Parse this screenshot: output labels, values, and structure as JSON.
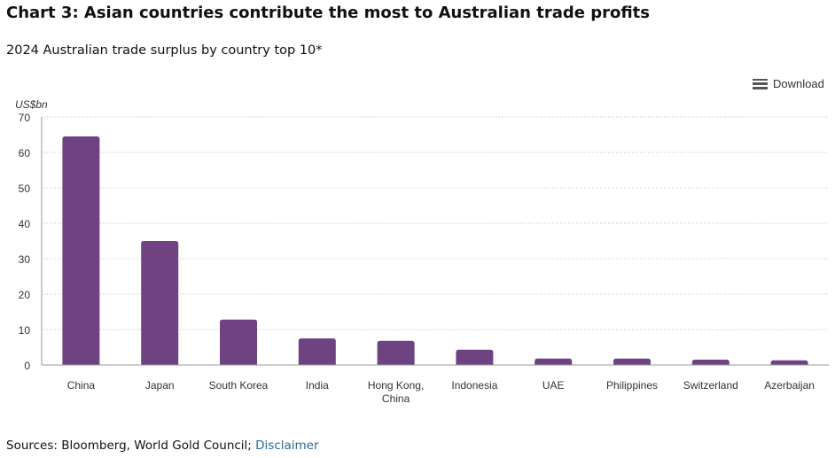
{
  "title": "Chart 3: Asian countries contribute the most to Australian trade profits",
  "subtitle": "2024 Australian trade surplus by country top 10*",
  "download_label": "Download",
  "sources_text": "Sources: Bloomberg, World Gold Council; ",
  "disclaimer_label": "Disclaimer",
  "chart_data": {
    "type": "bar",
    "categories": [
      "China",
      "Japan",
      "South Korea",
      "India",
      "Hong Kong, China",
      "Indonesia",
      "UAE",
      "Philippines",
      "Switzerland",
      "Azerbaijan"
    ],
    "values": [
      64.5,
      35,
      12.8,
      7.5,
      6.8,
      4.3,
      1.8,
      1.8,
      1.5,
      1.3
    ],
    "ylabel": "US$bn",
    "ylim": [
      0,
      70
    ],
    "yticks": [
      0,
      10,
      20,
      30,
      40,
      50,
      60,
      70
    ],
    "grid": true,
    "bar_color": "#6f4282"
  }
}
